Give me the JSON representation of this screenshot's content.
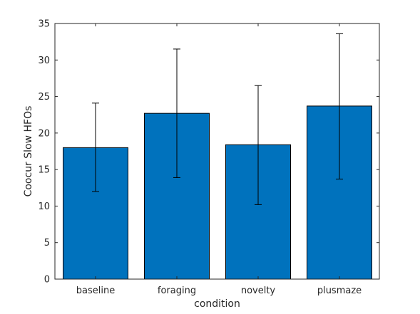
{
  "chart_data": {
    "type": "bar",
    "categories": [
      "baseline",
      "foraging",
      "novelty",
      "plusmaze"
    ],
    "values": [
      18.0,
      22.7,
      18.4,
      23.7
    ],
    "error_low": [
      12.0,
      13.9,
      10.2,
      13.7
    ],
    "error_high": [
      24.1,
      31.5,
      26.5,
      33.6
    ],
    "xlabel": "condition",
    "ylabel": "Coocur Slow HFOs",
    "ylim": [
      0,
      35
    ],
    "yticks": [
      0,
      5,
      10,
      15,
      20,
      25,
      30,
      35
    ],
    "bar_color": "#0072BD",
    "grid": false
  }
}
